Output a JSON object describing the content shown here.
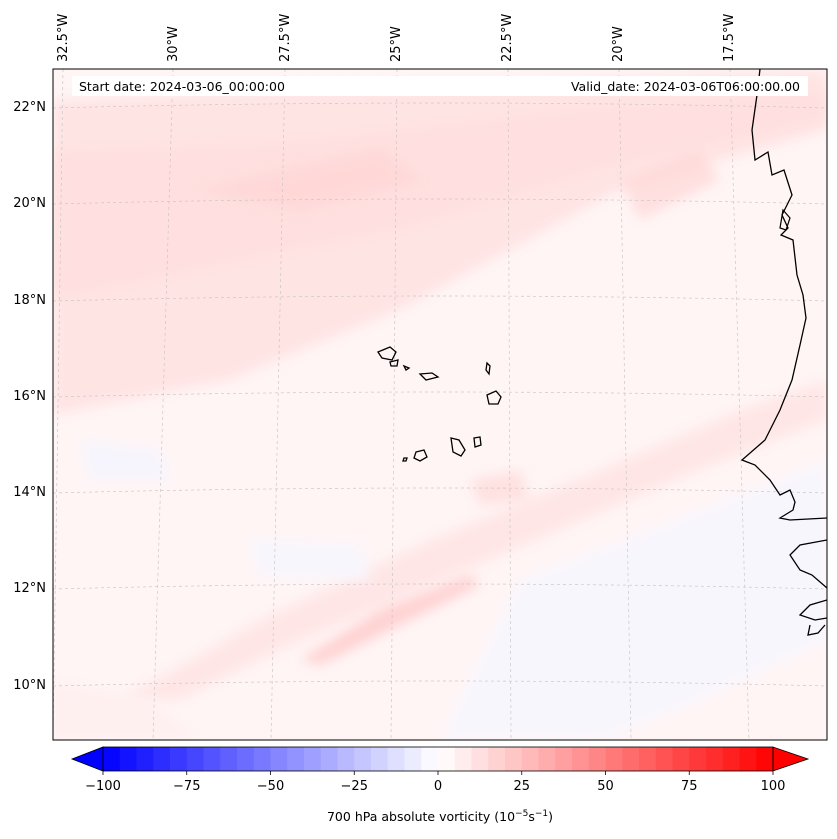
{
  "map": {
    "start_date": "Start date: 2024-03-06_00:00:00",
    "valid_date": "Valid_date: 2024-03-06T06:00:00.00",
    "longitude_labels": [
      "32.5°W",
      "30°W",
      "27.5°W",
      "25°W",
      "22.5°W",
      "20°W",
      "17.5°W"
    ],
    "latitude_labels": [
      "22°N",
      "20°N",
      "18°N",
      "16°N",
      "14°N",
      "12°N",
      "10°N"
    ],
    "features": [
      "coastline-west-africa",
      "cape-verde-islands"
    ]
  },
  "colorbar": {
    "label_text": "700 hPa absolute vorticity (10",
    "label_exp1": "−5",
    "label_mid": "s",
    "label_exp2": "−1",
    "label_close": ")",
    "ticks": [
      "−100",
      "−75",
      "−50",
      "−25",
      "0",
      "25",
      "50",
      "75",
      "100"
    ],
    "tick_values": [
      -100,
      -75,
      -50,
      -25,
      0,
      25,
      50,
      75,
      100
    ],
    "min": -100,
    "max": 100,
    "levels": 41,
    "extend": "both",
    "colormap": "bwr",
    "colors": {
      "negative": "#0000ff",
      "neutral": "#ffffff",
      "positive": "#ff0000"
    }
  }
}
